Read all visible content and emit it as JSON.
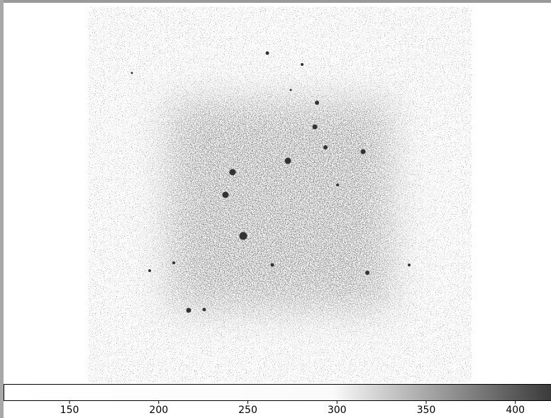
{
  "colorbar": {
    "range": [
      113,
      420
    ],
    "ticks": [
      150,
      200,
      250,
      300,
      350,
      400
    ]
  }
}
